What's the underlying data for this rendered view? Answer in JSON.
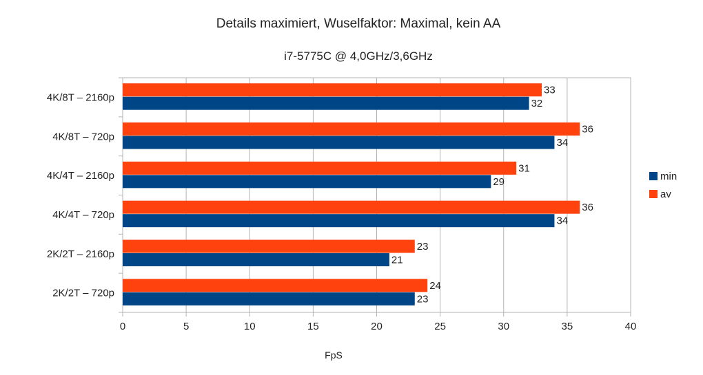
{
  "chart_data": {
    "type": "bar",
    "orientation": "horizontal",
    "title": "Details maximiert, Wuselfaktor: Maximal, kein AA",
    "subtitle": "i7-5775C @ 4,0GHz/3,6GHz",
    "xlabel": "FpS",
    "ylabel": "",
    "xlim": [
      0,
      40
    ],
    "x_ticks": [
      0,
      5,
      10,
      15,
      20,
      25,
      30,
      35,
      40
    ],
    "grid": true,
    "legend_position": "right",
    "categories": [
      "4K/8T – 2160p",
      "4K/8T – 720p",
      "4K/4T – 2160p",
      "4K/4T – 720p",
      "2K/2T – 2160p",
      "2K/2T – 720p"
    ],
    "series": [
      {
        "name": "av",
        "color": "#ff420e",
        "values": [
          33,
          36,
          31,
          36,
          23,
          24
        ]
      },
      {
        "name": "min",
        "color": "#004586",
        "values": [
          32,
          34,
          29,
          34,
          21,
          23
        ]
      }
    ],
    "legend_order": [
      "min",
      "av"
    ]
  }
}
